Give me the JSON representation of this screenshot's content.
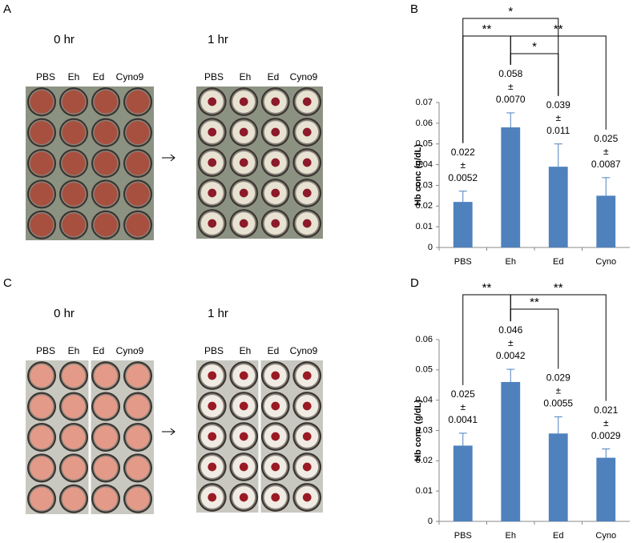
{
  "panels": {
    "A": {
      "letter": "A",
      "before": "0 hr",
      "after": "1 hr",
      "columns": [
        "PBS",
        "Eh",
        "Ed",
        "Cyno9"
      ]
    },
    "C": {
      "letter": "C",
      "before": "0 hr",
      "after": "1 hr",
      "columns": [
        "PBS",
        "Eh",
        "Ed",
        "Cyno9"
      ]
    }
  },
  "chart_data": [
    {
      "type": "bar",
      "letter": "B",
      "ylabel": "Hb conc (g/dL)",
      "color": "#4f81bd",
      "categories": [
        "PBS",
        "Eh",
        "Ed",
        "Cyno"
      ],
      "values": [
        0.022,
        0.058,
        0.039,
        0.025
      ],
      "value_labels": [
        "0.022",
        "0.058",
        "0.039",
        "0.025"
      ],
      "errors": [
        0.0052,
        0.007,
        0.011,
        0.0087
      ],
      "error_labels": [
        "0.0052",
        "0.0070",
        "0.011",
        "0.0087"
      ],
      "error_separator": "±",
      "ylim": [
        0,
        0.07
      ],
      "yticks": [
        0,
        0.01,
        0.02,
        0.03,
        0.04,
        0.05,
        0.06,
        0.07
      ],
      "significance": [
        {
          "from": "PBS",
          "to": "Ed",
          "label": "*"
        },
        {
          "from": "PBS",
          "to": "Eh",
          "label": "**"
        },
        {
          "from": "Eh",
          "to": "Cyno",
          "label": "**"
        },
        {
          "from": "Eh",
          "to": "Ed",
          "label": "*"
        }
      ]
    },
    {
      "type": "bar",
      "letter": "D",
      "ylabel": "Hb conc (g/dL)",
      "color": "#4f81bd",
      "categories": [
        "PBS",
        "Eh",
        "Ed",
        "Cyno"
      ],
      "values": [
        0.025,
        0.046,
        0.029,
        0.021
      ],
      "value_labels": [
        "0.025",
        "0.046",
        "0.029",
        "0.021"
      ],
      "errors": [
        0.0041,
        0.0042,
        0.0055,
        0.0029
      ],
      "error_labels": [
        "0.0041",
        "0.0042",
        "0.0055",
        "0.0029"
      ],
      "error_separator": "±",
      "ylim": [
        0,
        0.06
      ],
      "yticks": [
        0,
        0.01,
        0.02,
        0.03,
        0.04,
        0.05,
        0.06
      ],
      "significance": [
        {
          "from": "PBS",
          "to": "Eh",
          "label": "**"
        },
        {
          "from": "Eh",
          "to": "Cyno",
          "label": "**"
        },
        {
          "from": "Eh",
          "to": "Ed",
          "label": "**"
        }
      ]
    }
  ]
}
